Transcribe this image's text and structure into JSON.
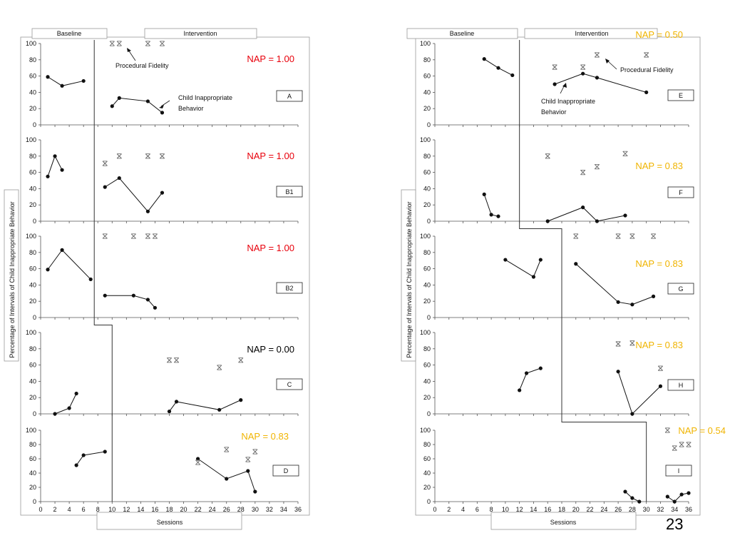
{
  "slide_number": "23",
  "colors": {
    "nap_red": "#e8000b",
    "nap_black": "#000000",
    "nap_orange": "#f0b400",
    "line": "#111111",
    "fidelity": "#6a6a6a",
    "frame": "#9a9a9a"
  },
  "chart_data": [
    {
      "type": "line",
      "layout": "multiple-baseline",
      "phases": [
        "Baseline",
        "Intervention"
      ],
      "ylabel": "Percentage of Intervals of Child Inappropriate Behavior",
      "xlabel": "Sessions",
      "xlim": [
        0,
        36
      ],
      "ylim": [
        0,
        100
      ],
      "xticks": [
        "0",
        "2",
        "4",
        "6",
        "8",
        "10",
        "12",
        "14",
        "16",
        "18",
        "20",
        "22",
        "24",
        "26",
        "28",
        "30",
        "32",
        "34",
        "36"
      ],
      "yticks": [
        "0",
        "20",
        "40",
        "60",
        "80",
        "100"
      ],
      "annotations": [
        "Procedural Fidelity",
        "Child Inappropriate Behavior"
      ],
      "panels": [
        {
          "label": "A",
          "phase_change_x": 7.5,
          "nap": "NAP = 1.00",
          "nap_color": "red",
          "baseline": [
            [
              1,
              59
            ],
            [
              3,
              48
            ],
            [
              6,
              54
            ]
          ],
          "intervention": [
            [
              10,
              23
            ],
            [
              11,
              33
            ],
            [
              15,
              29
            ],
            [
              17,
              15
            ]
          ],
          "fidelity": [
            [
              10,
              100
            ],
            [
              11,
              100
            ],
            [
              15,
              100
            ],
            [
              17,
              100
            ]
          ]
        },
        {
          "label": "B1",
          "phase_change_x": 7.5,
          "nap": "NAP = 1.00",
          "nap_color": "red",
          "baseline": [
            [
              1,
              55
            ],
            [
              2,
              80
            ],
            [
              3,
              63
            ]
          ],
          "intervention": [
            [
              9,
              42
            ],
            [
              11,
              53
            ],
            [
              15,
              12
            ],
            [
              17,
              35
            ]
          ],
          "fidelity": [
            [
              9,
              71
            ],
            [
              11,
              80
            ],
            [
              15,
              80
            ],
            [
              17,
              80
            ]
          ]
        },
        {
          "label": "B2",
          "phase_change_x": 7.5,
          "nap": "NAP = 1.00",
          "nap_color": "red",
          "baseline": [
            [
              1,
              59
            ],
            [
              3,
              83
            ],
            [
              7,
              47
            ]
          ],
          "intervention": [
            [
              9,
              27
            ],
            [
              13,
              27
            ],
            [
              15,
              22
            ],
            [
              16,
              12
            ]
          ],
          "fidelity": [
            [
              9,
              100
            ],
            [
              13,
              100
            ],
            [
              15,
              100
            ],
            [
              16,
              100
            ]
          ]
        },
        {
          "label": "C",
          "phase_change_x": 10,
          "nap": "NAP = 0.00",
          "nap_color": "black",
          "baseline": [
            [
              2,
              0
            ],
            [
              4,
              7
            ],
            [
              5,
              25
            ]
          ],
          "intervention": [
            [
              18,
              3
            ],
            [
              19,
              15
            ],
            [
              25,
              5
            ],
            [
              28,
              17
            ]
          ],
          "fidelity": [
            [
              18,
              66
            ],
            [
              19,
              66
            ],
            [
              25,
              57
            ],
            [
              28,
              66
            ]
          ]
        },
        {
          "label": "D",
          "phase_change_x": 10,
          "nap": "NAP = 0.83",
          "nap_color": "orange",
          "baseline": [
            [
              5,
              51
            ],
            [
              6,
              65
            ],
            [
              9,
              70
            ]
          ],
          "intervention": [
            [
              22,
              60
            ],
            [
              26,
              32
            ],
            [
              29,
              43
            ],
            [
              30,
              14
            ]
          ],
          "fidelity": [
            [
              22,
              55
            ],
            [
              26,
              73
            ],
            [
              29,
              59
            ],
            [
              30,
              70
            ]
          ]
        },
        {
          "label": "E",
          "phase_change_x": 12,
          "nap": "NAP = 0.50",
          "nap_color": "orange",
          "baseline": [
            [
              7,
              81
            ],
            [
              9,
              70
            ],
            [
              11,
              61
            ]
          ],
          "intervention": [
            [
              17,
              50
            ],
            [
              21,
              63
            ],
            [
              23,
              58
            ],
            [
              30,
              40
            ]
          ],
          "fidelity": [
            [
              17,
              71
            ],
            [
              21,
              71
            ],
            [
              23,
              86
            ],
            [
              30,
              86
            ]
          ]
        },
        {
          "label": "F",
          "phase_change_x": 12,
          "nap": "NAP = 0.83",
          "nap_color": "orange",
          "baseline": [
            [
              7,
              33
            ],
            [
              8,
              8
            ],
            [
              9,
              6
            ]
          ],
          "intervention": [
            [
              16,
              0
            ],
            [
              21,
              17
            ],
            [
              23,
              0
            ],
            [
              27,
              7
            ]
          ],
          "fidelity": [
            [
              16,
              80
            ],
            [
              21,
              60
            ],
            [
              23,
              67
            ],
            [
              27,
              83
            ]
          ]
        },
        {
          "label": "G",
          "phase_change_x": 18,
          "nap": "NAP = 0.83",
          "nap_color": "orange",
          "baseline": [
            [
              10,
              71
            ],
            [
              14,
              50
            ],
            [
              15,
              71
            ]
          ],
          "intervention": [
            [
              20,
              66
            ],
            [
              26,
              19
            ],
            [
              28,
              16
            ],
            [
              31,
              26
            ]
          ],
          "fidelity": [
            [
              20,
              100
            ],
            [
              26,
              100
            ],
            [
              28,
              100
            ],
            [
              31,
              100
            ]
          ]
        },
        {
          "label": "H",
          "phase_change_x": 18,
          "nap": "NAP = 0.83",
          "nap_color": "orange",
          "baseline": [
            [
              12,
              29
            ],
            [
              13,
              50
            ],
            [
              15,
              56
            ]
          ],
          "intervention": [
            [
              26,
              52
            ],
            [
              28,
              0
            ],
            [
              32,
              34
            ]
          ],
          "fidelity": [
            [
              26,
              86
            ],
            [
              28,
              87
            ],
            [
              32,
              56
            ]
          ]
        },
        {
          "label": "I",
          "phase_change_x": 30,
          "nap": "NAP = 0.54",
          "nap_color": "orange",
          "baseline": [
            [
              27,
              14
            ],
            [
              28,
              5
            ],
            [
              29,
              0
            ]
          ],
          "intervention": [
            [
              33,
              7
            ],
            [
              34,
              0
            ],
            [
              35,
              10
            ],
            [
              36,
              12
            ]
          ],
          "fidelity": [
            [
              33,
              100
            ],
            [
              34,
              75
            ],
            [
              35,
              80
            ],
            [
              36,
              80
            ]
          ]
        }
      ]
    }
  ]
}
